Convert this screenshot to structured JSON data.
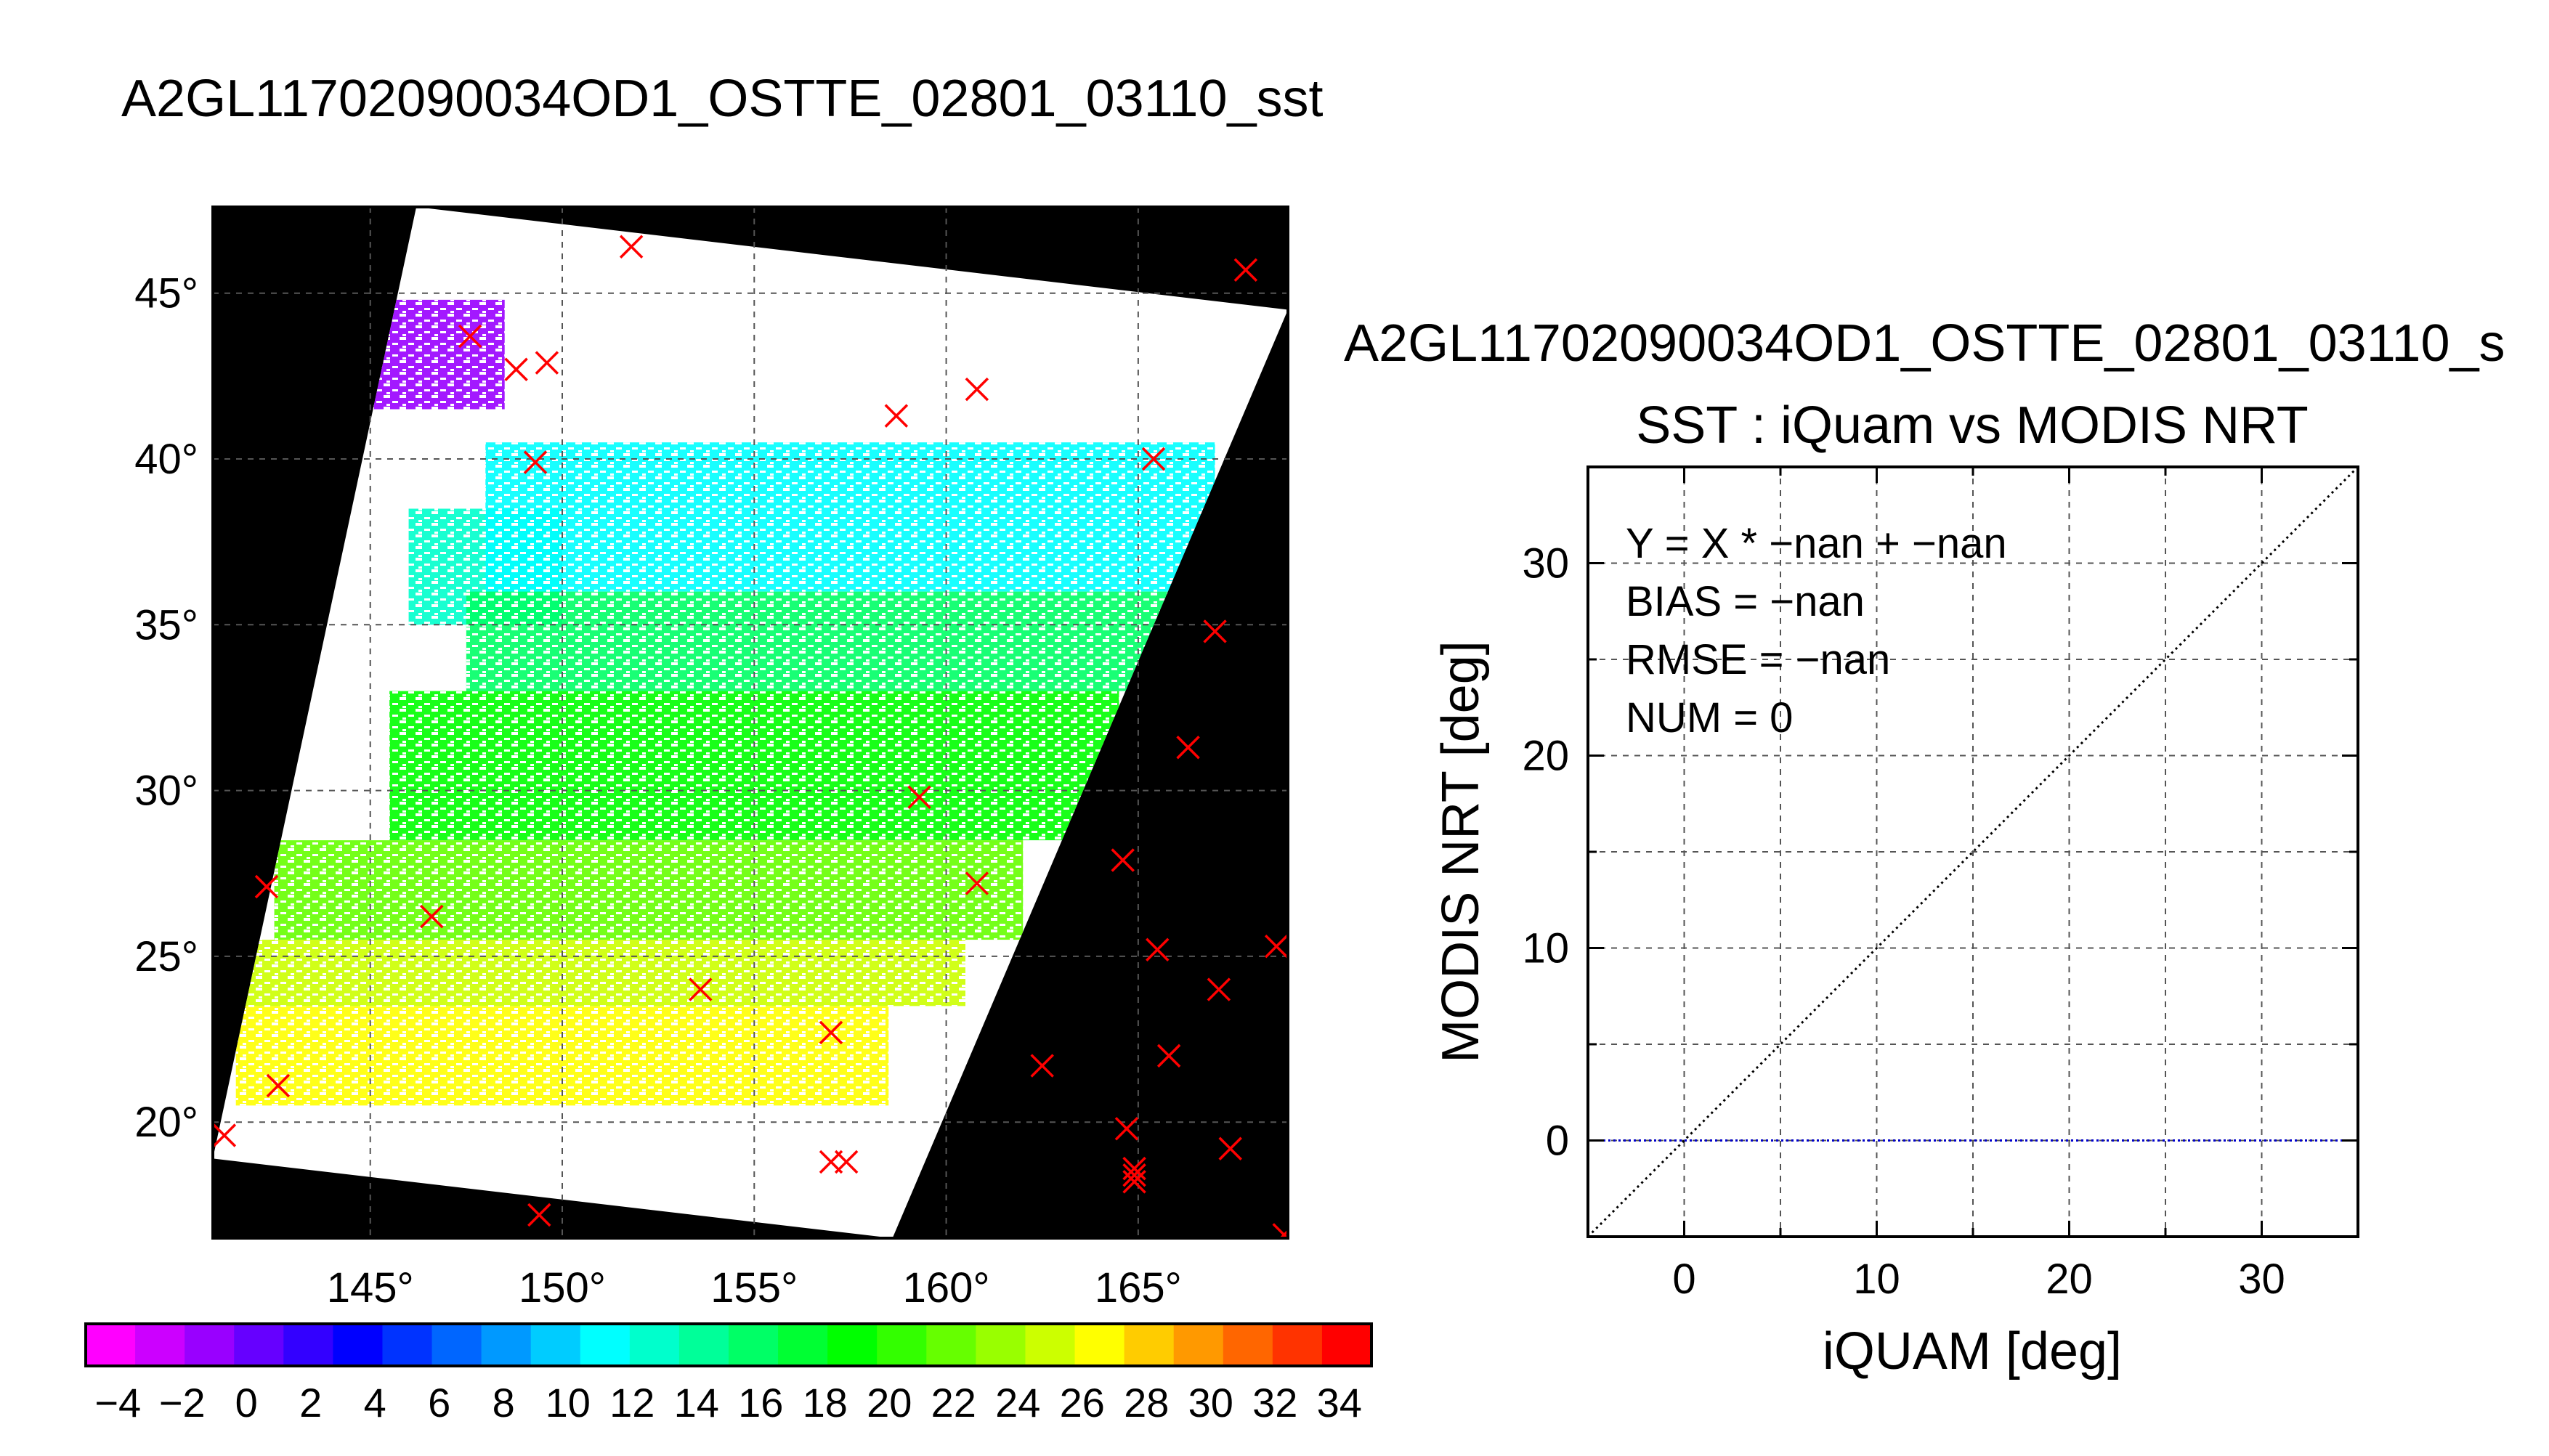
{
  "page": {
    "main_title": "A2GL11702090034OD1_OSTTE_02801_03110_sst",
    "right_title": "A2GL11702090034OD1_OSTTE_02801_03110_s"
  },
  "colors": {
    "background": "#ffffff",
    "land_mask": "#000000",
    "grid": "#555555",
    "buoy_marker": "#ff0000",
    "one_to_one_line": "#000000",
    "zero_line": "#0000cc"
  },
  "chart_data": [
    {
      "type": "heatmap",
      "title": "",
      "x_ticks": [
        "145°",
        "150°",
        "155°",
        "160°",
        "165°"
      ],
      "x_tick_values": [
        145,
        150,
        155,
        160,
        165
      ],
      "y_ticks": [
        "45°",
        "40°",
        "35°",
        "30°",
        "25°",
        "20°"
      ],
      "y_tick_values": [
        45,
        40,
        35,
        30,
        25,
        20
      ],
      "xlim": [
        140.9,
        168.9
      ],
      "ylim": [
        16.5,
        47.6
      ],
      "grid": true,
      "swath_corners_lonlat": [
        [
          146.2,
          47.6
        ],
        [
          168.9,
          44.5
        ],
        [
          158.6,
          16.5
        ],
        [
          140.9,
          18.9
        ]
      ],
      "sst_patches": [
        {
          "lon_min": 144.5,
          "lon_max": 148.5,
          "lat_min": 41.5,
          "lat_max": 44.8,
          "value": -1
        },
        {
          "lon_min": 146.0,
          "lon_max": 150.0,
          "lat_min": 35.0,
          "lat_max": 38.5,
          "value": 12
        },
        {
          "lon_min": 148.0,
          "lon_max": 167.0,
          "lat_min": 36.0,
          "lat_max": 40.5,
          "value": 11
        },
        {
          "lon_min": 147.5,
          "lon_max": 166.0,
          "lat_min": 33.0,
          "lat_max": 36.0,
          "value": 15
        },
        {
          "lon_min": 145.5,
          "lon_max": 164.5,
          "lat_min": 28.5,
          "lat_max": 33.0,
          "value": 19
        },
        {
          "lon_min": 142.5,
          "lon_max": 162.0,
          "lat_min": 25.5,
          "lat_max": 28.5,
          "value": 22
        },
        {
          "lon_min": 141.5,
          "lon_max": 160.5,
          "lat_min": 23.5,
          "lat_max": 25.5,
          "value": 25
        },
        {
          "lon_min": 141.5,
          "lon_max": 158.5,
          "lat_min": 20.5,
          "lat_max": 23.5,
          "value": 27
        }
      ],
      "colorbar": {
        "vmin": -5,
        "vmax": 35,
        "tick_labels": [
          "−4",
          "−2",
          "0",
          "2",
          "4",
          "6",
          "8",
          "10",
          "12",
          "14",
          "16",
          "18",
          "20",
          "22",
          "24",
          "26",
          "28",
          "30",
          "32",
          "34"
        ],
        "tick_values": [
          -4,
          -2,
          0,
          2,
          4,
          6,
          8,
          10,
          12,
          14,
          16,
          18,
          20,
          22,
          24,
          26,
          28,
          30,
          32,
          34
        ],
        "band_colors": [
          "#ff00ff",
          "#cc00ff",
          "#9900ff",
          "#6600ff",
          "#3300ff",
          "#0000ff",
          "#0033ff",
          "#0066ff",
          "#0099ff",
          "#00ccff",
          "#00ffff",
          "#00ffcc",
          "#00ff99",
          "#00ff66",
          "#00ff33",
          "#00ff00",
          "#33ff00",
          "#66ff00",
          "#99ff00",
          "#ccff00",
          "#ffff00",
          "#ffcc00",
          "#ff9900",
          "#ff6600",
          "#ff3300",
          "#ff0000"
        ]
      },
      "buoy_markers_lonlat": [
        [
          141.2,
          19.6
        ],
        [
          142.3,
          27.1
        ],
        [
          142.6,
          21.1
        ],
        [
          146.6,
          26.2
        ],
        [
          147.6,
          43.7
        ],
        [
          148.8,
          42.7
        ],
        [
          149.3,
          39.9
        ],
        [
          149.6,
          42.9
        ],
        [
          149.4,
          17.2
        ],
        [
          151.8,
          46.4
        ],
        [
          153.6,
          24.0
        ],
        [
          157.0,
          22.7
        ],
        [
          157.0,
          18.8
        ],
        [
          157.4,
          18.8
        ],
        [
          158.7,
          41.3
        ],
        [
          159.3,
          29.8
        ],
        [
          160.8,
          42.1
        ],
        [
          160.8,
          27.2
        ],
        [
          162.5,
          21.7
        ],
        [
          164.6,
          27.9
        ],
        [
          164.7,
          19.8
        ],
        [
          164.9,
          18.6
        ],
        [
          164.9,
          18.2
        ],
        [
          164.9,
          18.4
        ],
        [
          165.4,
          40.0
        ],
        [
          165.5,
          25.2
        ],
        [
          165.8,
          22.0
        ],
        [
          166.3,
          31.3
        ],
        [
          167.0,
          34.8
        ],
        [
          167.1,
          24.0
        ],
        [
          167.4,
          19.2
        ],
        [
          167.8,
          45.7
        ],
        [
          168.6,
          25.3
        ],
        [
          168.8,
          16.6
        ]
      ]
    },
    {
      "type": "scatter",
      "title": "SST : iQuam vs MODIS NRT",
      "xlabel": "iQUAM [deg]",
      "ylabel": "MODIS NRT [deg]",
      "xlim": [
        -5,
        35
      ],
      "ylim": [
        -5,
        35
      ],
      "x_ticks": [
        "0",
        "10",
        "20",
        "30"
      ],
      "x_tick_values": [
        0,
        10,
        20,
        30
      ],
      "y_ticks": [
        "0",
        "10",
        "20",
        "30"
      ],
      "y_tick_values": [
        0,
        10,
        20,
        30
      ],
      "grid": true,
      "grid_step": 5,
      "points": [],
      "reference_lines": [
        {
          "kind": "one_to_one",
          "style": "dotted",
          "color": "#000000"
        },
        {
          "kind": "horizontal",
          "y": 0,
          "style": "dotted",
          "color": "#0000cc"
        }
      ],
      "annotations": [
        "Y = X * −nan + −nan",
        "BIAS = −nan",
        "RMSE = −nan",
        "NUM = 0"
      ]
    }
  ]
}
